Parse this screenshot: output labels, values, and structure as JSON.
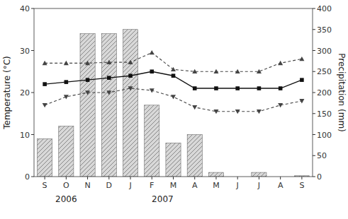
{
  "chart_data": {
    "type": "bar",
    "categories": [
      "S",
      "O",
      "N",
      "D",
      "J",
      "F",
      "M",
      "A",
      "M",
      "J",
      "J",
      "A",
      "S"
    ],
    "series": [
      {
        "type": "bar",
        "color": "#d8d8d8",
        "values": [
          9,
          12,
          34,
          34,
          35,
          17,
          8,
          10,
          1,
          0,
          1,
          0,
          0.2
        ]
      },
      {
        "type": "line",
        "color": "#444444",
        "marker": "triangle-up",
        "line_style": "dashed",
        "values": [
          27,
          27,
          27,
          27.2,
          27.2,
          29.5,
          25.5,
          25,
          25,
          25,
          25,
          27,
          28
        ]
      },
      {
        "type": "line",
        "color": "#111111",
        "marker": "square",
        "line_style": "solid",
        "values": [
          22,
          22.5,
          23,
          23.5,
          24,
          25,
          24,
          21,
          21,
          21,
          21,
          21,
          23
        ]
      },
      {
        "type": "line",
        "color": "#444444",
        "marker": "triangle-down",
        "line_style": "dashed",
        "values": [
          17,
          19,
          20,
          20,
          21,
          20.5,
          19,
          16.5,
          15.5,
          15.5,
          15.5,
          17,
          18
        ]
      }
    ],
    "ylabel": "Temperature (°C)",
    "y2label": "Precipitation (mm)",
    "ylim": [
      0,
      40
    ],
    "yticks": [
      0,
      10,
      20,
      30,
      40
    ],
    "y2lim": [
      0,
      400
    ],
    "y2ticks": [
      0,
      50,
      100,
      150,
      200,
      250,
      300,
      350,
      400
    ],
    "grid": false,
    "annotations": [
      {
        "text": "2006",
        "x": 1.0
      },
      {
        "text": "2007",
        "x": 5.5
      }
    ]
  }
}
